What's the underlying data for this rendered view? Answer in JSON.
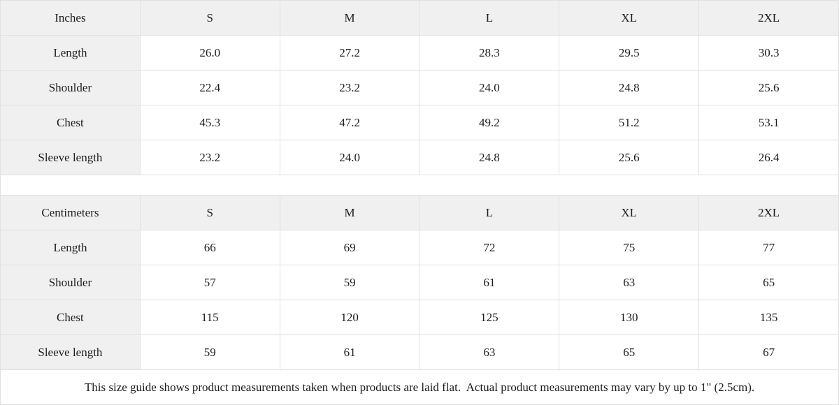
{
  "colors": {
    "header_bg": "#f0f0f0",
    "border": "#e0e0e0",
    "text": "#1c1c1c",
    "cell_bg": "#ffffff"
  },
  "size_guide": {
    "inches": {
      "unit_label": "Inches",
      "sizes": [
        "S",
        "M",
        "L",
        "XL",
        "2XL"
      ],
      "rows": [
        {
          "label": "Length",
          "values": [
            "26.0",
            "27.2",
            "28.3",
            "29.5",
            "30.3"
          ]
        },
        {
          "label": "Shoulder",
          "values": [
            "22.4",
            "23.2",
            "24.0",
            "24.8",
            "25.6"
          ]
        },
        {
          "label": "Chest",
          "values": [
            "45.3",
            "47.2",
            "49.2",
            "51.2",
            "53.1"
          ]
        },
        {
          "label": "Sleeve length",
          "values": [
            "23.2",
            "24.0",
            "24.8",
            "25.6",
            "26.4"
          ]
        }
      ]
    },
    "centimeters": {
      "unit_label": "Centimeters",
      "sizes": [
        "S",
        "M",
        "L",
        "XL",
        "2XL"
      ],
      "rows": [
        {
          "label": "Length",
          "values": [
            "66",
            "69",
            "72",
            "75",
            "77"
          ]
        },
        {
          "label": "Shoulder",
          "values": [
            "57",
            "59",
            "61",
            "63",
            "65"
          ]
        },
        {
          "label": "Chest",
          "values": [
            "115",
            "120",
            "125",
            "130",
            "135"
          ]
        },
        {
          "label": "Sleeve length",
          "values": [
            "59",
            "61",
            "63",
            "65",
            "67"
          ]
        }
      ]
    },
    "note": "This size guide shows product measurements taken when products are laid flat.  Actual product measurements may vary by up to 1\" (2.5cm)."
  }
}
